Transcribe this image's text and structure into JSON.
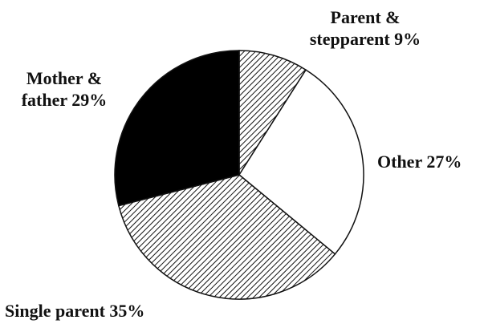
{
  "chart_data": {
    "type": "pie",
    "categories": [
      "Parent & stepparent",
      "Other",
      "Single parent",
      "Mother & father"
    ],
    "values": [
      9,
      27,
      35,
      29
    ],
    "value_labels": [
      "9%",
      "27%",
      "35%",
      "29%"
    ],
    "fills": [
      "hatch",
      "#ffffff",
      "hatch",
      "#000000"
    ]
  }
}
